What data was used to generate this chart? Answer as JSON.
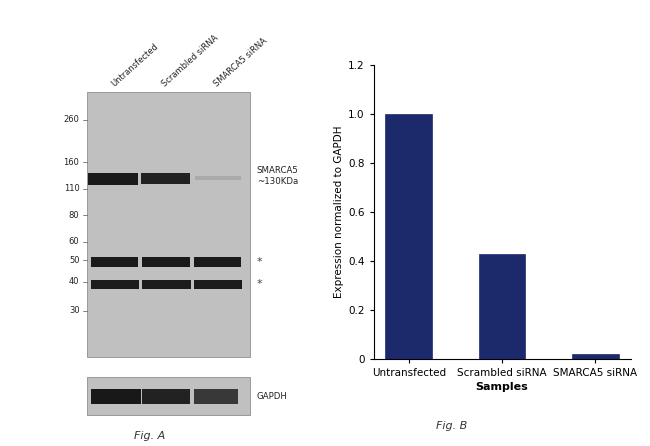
{
  "fig_a_label": "Fig. A",
  "fig_b_label": "Fig. B",
  "wb_background": "#c0c0c0",
  "wb_border_color": "#999999",
  "mw_markers": [
    260,
    160,
    110,
    80,
    60,
    50,
    40,
    30
  ],
  "mw_y_fracs": [
    0.895,
    0.735,
    0.635,
    0.535,
    0.435,
    0.365,
    0.285,
    0.175
  ],
  "sample_labels": [
    "Untransfected",
    "Scrambled siRNA",
    "SMARCA5 siRNA"
  ],
  "smarca5_label": "SMARCA5\n~130KDa",
  "gapdh_label": "GAPDH",
  "bar_categories": [
    "Untransfected",
    "Scrambled siRNA",
    "SMARCA5 siRNA"
  ],
  "bar_values": [
    1.0,
    0.43,
    0.02
  ],
  "bar_color": "#1c2a6b",
  "ylabel": "Expression normalized to GAPDH",
  "xlabel": "Samples",
  "ylim": [
    0,
    1.2
  ],
  "yticks": [
    0,
    0.2,
    0.4,
    0.6,
    0.8,
    1.0,
    1.2
  ],
  "background_color": "#ffffff"
}
